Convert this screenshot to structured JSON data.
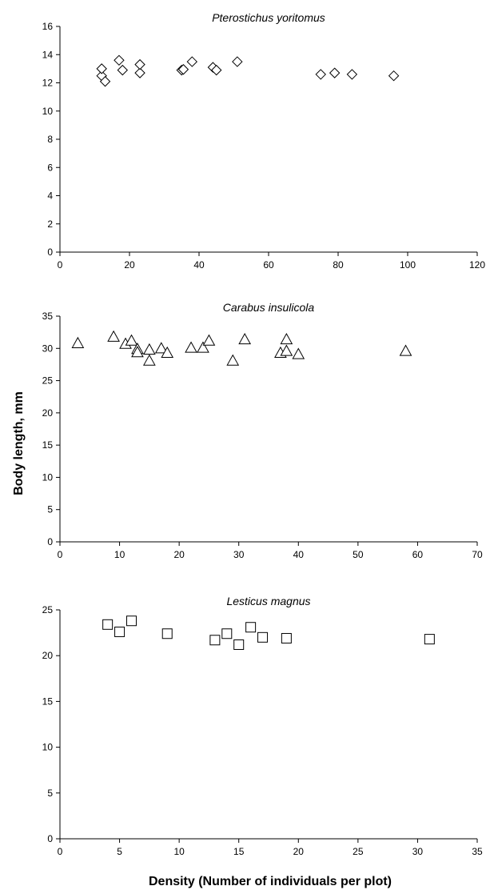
{
  "chart_data": [
    {
      "type": "scatter",
      "title": "Pterostichus yoritomus",
      "marker": "diamond",
      "xlim": [
        0,
        120
      ],
      "ylim": [
        0,
        16
      ],
      "xticks": [
        0,
        20,
        40,
        60,
        80,
        100,
        120
      ],
      "yticks": [
        0,
        2,
        4,
        6,
        8,
        10,
        12,
        14,
        16
      ],
      "points": [
        {
          "x": 12,
          "y": 12.5
        },
        {
          "x": 12,
          "y": 13.0
        },
        {
          "x": 13,
          "y": 12.1
        },
        {
          "x": 17,
          "y": 13.6
        },
        {
          "x": 18,
          "y": 12.9
        },
        {
          "x": 23,
          "y": 12.7
        },
        {
          "x": 23,
          "y": 13.3
        },
        {
          "x": 35,
          "y": 12.9
        },
        {
          "x": 35.5,
          "y": 12.95
        },
        {
          "x": 38,
          "y": 13.5
        },
        {
          "x": 44,
          "y": 13.1
        },
        {
          "x": 45,
          "y": 12.9
        },
        {
          "x": 51,
          "y": 13.5
        },
        {
          "x": 75,
          "y": 12.6
        },
        {
          "x": 79,
          "y": 12.7
        },
        {
          "x": 84,
          "y": 12.6
        },
        {
          "x": 96,
          "y": 12.5
        }
      ]
    },
    {
      "type": "scatter",
      "title": "Carabus insulicola",
      "marker": "triangle",
      "xlim": [
        0,
        70
      ],
      "ylim": [
        0,
        35
      ],
      "xticks": [
        0,
        10,
        20,
        30,
        40,
        50,
        60,
        70
      ],
      "yticks": [
        0,
        5,
        10,
        15,
        20,
        25,
        30,
        35
      ],
      "points": [
        {
          "x": 3,
          "y": 30.8
        },
        {
          "x": 9,
          "y": 31.8
        },
        {
          "x": 11,
          "y": 30.7
        },
        {
          "x": 12,
          "y": 31.2
        },
        {
          "x": 13,
          "y": 29.9
        },
        {
          "x": 13,
          "y": 29.4
        },
        {
          "x": 15,
          "y": 28.1
        },
        {
          "x": 15,
          "y": 29.8
        },
        {
          "x": 17,
          "y": 30.0
        },
        {
          "x": 18,
          "y": 29.3
        },
        {
          "x": 22,
          "y": 30.1
        },
        {
          "x": 24,
          "y": 30.1
        },
        {
          "x": 25,
          "y": 31.2
        },
        {
          "x": 29,
          "y": 28.1
        },
        {
          "x": 31,
          "y": 31.4
        },
        {
          "x": 37,
          "y": 29.3
        },
        {
          "x": 38,
          "y": 31.4
        },
        {
          "x": 38,
          "y": 29.6
        },
        {
          "x": 40,
          "y": 29.1
        },
        {
          "x": 58,
          "y": 29.6
        }
      ]
    },
    {
      "type": "scatter",
      "title": "Lesticus magnus",
      "marker": "square",
      "xlim": [
        0,
        35
      ],
      "ylim": [
        0,
        25
      ],
      "xticks": [
        0,
        5,
        10,
        15,
        20,
        25,
        30,
        35
      ],
      "yticks": [
        0,
        5,
        10,
        15,
        20,
        25
      ],
      "points": [
        {
          "x": 4,
          "y": 23.4
        },
        {
          "x": 5,
          "y": 22.6
        },
        {
          "x": 6,
          "y": 23.8
        },
        {
          "x": 9,
          "y": 22.4
        },
        {
          "x": 13,
          "y": 21.7
        },
        {
          "x": 14,
          "y": 22.4
        },
        {
          "x": 15,
          "y": 21.2
        },
        {
          "x": 16,
          "y": 23.1
        },
        {
          "x": 17,
          "y": 22.0
        },
        {
          "x": 19,
          "y": 21.9
        },
        {
          "x": 31,
          "y": 21.8
        }
      ]
    }
  ],
  "labels": {
    "ylabel": "Body length, mm",
    "xlabel": "Density (Number of individuals per plot)"
  }
}
